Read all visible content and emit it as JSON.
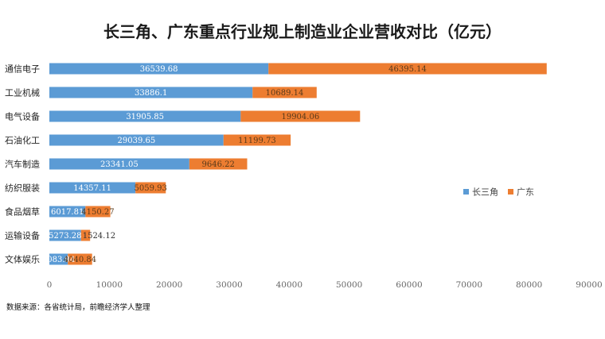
{
  "chart_data": {
    "type": "bar",
    "orientation": "horizontal",
    "stacked": true,
    "title": "长三角、广东重点行业规上制造业企业营收对比（亿元）",
    "categories": [
      "通信电子",
      "工业机械",
      "电气设备",
      "石油化工",
      "汽车制造",
      "纺织服装",
      "食品烟草",
      "运输设备",
      "文体娱乐"
    ],
    "series": [
      {
        "name": "长三角",
        "color": "#5b9bd5",
        "values": [
          36539.68,
          33886.1,
          31905.85,
          29039.65,
          23341.05,
          14357.11,
          6017.81,
          5273.28,
          3083.94
        ]
      },
      {
        "name": "广东",
        "color": "#ed7d31",
        "values": [
          46395.14,
          10689.14,
          19904.06,
          11199.73,
          9646.22,
          5059.93,
          4150.27,
          1524.12,
          4040.84
        ]
      }
    ],
    "data_labels": {
      "长三角": [
        "36539.68",
        "33886.1",
        "31905.85",
        "29039.65",
        "23341.05",
        "14357.11",
        "6017.81",
        "5273.28",
        "3083.94"
      ],
      "广东": [
        "46395.14",
        "10689.14",
        "19904.06",
        "11199.73",
        "9646.22",
        "5059.93",
        "4150.27",
        "1524.12",
        "4040.84"
      ]
    },
    "xlim": [
      0,
      90000
    ],
    "xticks": [
      0,
      10000,
      20000,
      30000,
      40000,
      50000,
      60000,
      70000,
      80000,
      90000
    ],
    "grid": false,
    "legend_position": "right"
  },
  "source_note": "数据来源：各省统计局，前瞻经济学人整理"
}
